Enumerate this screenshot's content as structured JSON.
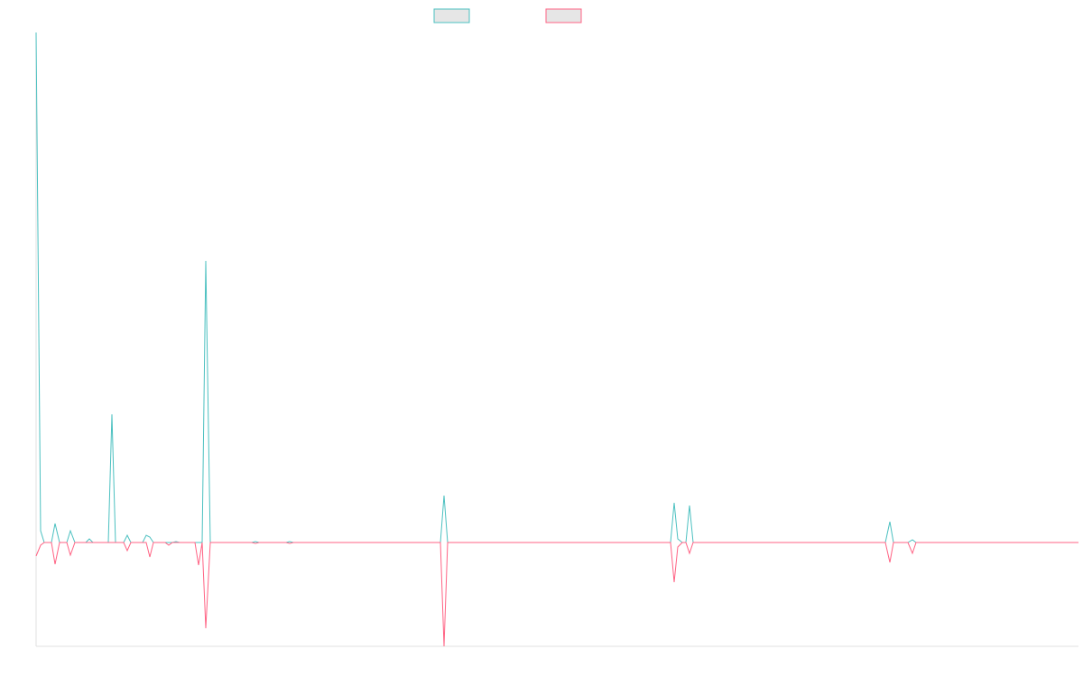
{
  "chart_data": {
    "type": "line",
    "x": [
      0,
      5,
      9,
      17,
      21,
      26,
      34,
      38,
      43,
      55,
      59,
      63,
      80,
      84,
      88,
      97,
      101,
      105,
      118,
      122,
      126,
      130,
      143,
      147,
      151,
      155,
      159,
      163,
      176,
      180,
      184,
      188,
      193,
      239,
      243,
      247,
      277,
      281,
      285,
      448,
      452,
      456,
      703,
      707,
      711,
      716,
      720,
      724,
      728,
      941,
      946,
      950,
      966,
      971,
      975,
      1155
    ],
    "series": [
      {
        "color": "#4bc0c0",
        "values": [
          565,
          13,
          0,
          0,
          21,
          0,
          0,
          13,
          0,
          0,
          4,
          0,
          0,
          142,
          0,
          0,
          8,
          0,
          0,
          8,
          6,
          0,
          0,
          0,
          0,
          1,
          0,
          0,
          0,
          0,
          0,
          312,
          0,
          0,
          1,
          0,
          0,
          1,
          0,
          0,
          52,
          0,
          0,
          44,
          4,
          0,
          0,
          41,
          0,
          0,
          23,
          0,
          0,
          3,
          0,
          0
        ]
      },
      {
        "color": "#ff6384",
        "values": [
          -15,
          -3,
          0,
          0,
          -24,
          0,
          0,
          -14,
          0,
          0,
          0,
          0,
          0,
          0,
          0,
          0,
          -9,
          0,
          0,
          0,
          -16,
          0,
          0,
          -3,
          0,
          0,
          0,
          0,
          0,
          -25,
          0,
          -95,
          0,
          0,
          -1,
          0,
          0,
          -1,
          0,
          0,
          -115,
          0,
          0,
          -44,
          -5,
          0,
          0,
          -12,
          0,
          0,
          -22,
          0,
          0,
          -12,
          0,
          0
        ]
      }
    ],
    "xlim": [
      0,
      1155
    ],
    "ylim": [
      -115,
      565
    ]
  }
}
